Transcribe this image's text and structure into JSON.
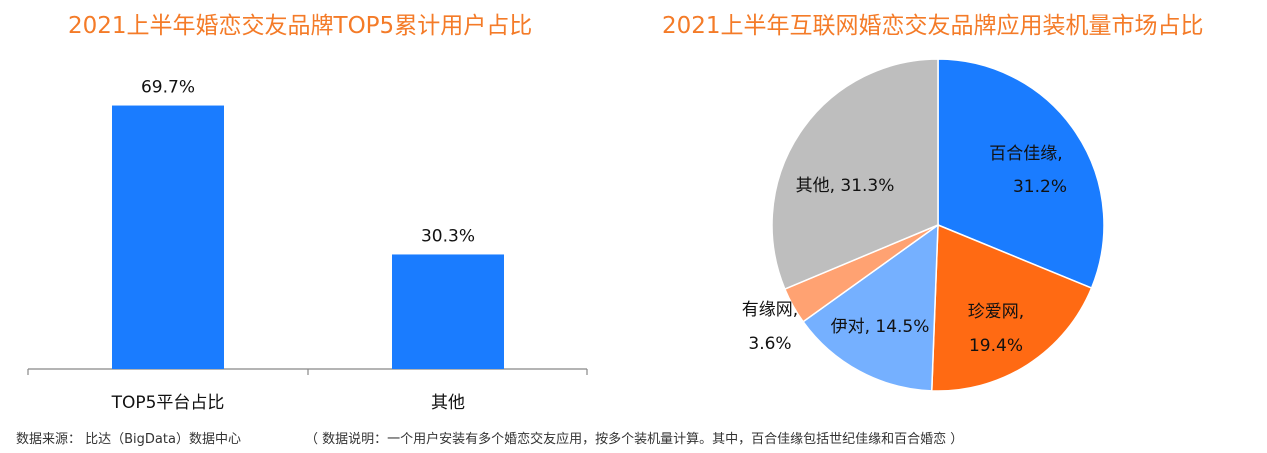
{
  "titles": {
    "left": "2021上半年婚恋交友品牌TOP5累计用户占比",
    "right": "2021上半年互联网婚恋交友品牌应用装机量市场占比"
  },
  "colors": {
    "title": "#f47b28",
    "bar": "#1a7cff"
  },
  "footer": {
    "source": "数据来源： 比达（BigData）数据中心",
    "note": "（ 数据说明：一个用户安装有多个婚恋交友应用，按多个装机量计算。其中，百合佳缘包括世纪佳缘和百合婚恋 ）"
  },
  "chart_data": [
    {
      "type": "bar",
      "title": "2021上半年婚恋交友品牌TOP5累计用户占比",
      "categories": [
        "TOP5平台占比",
        "其他"
      ],
      "values": [
        69.7,
        30.3
      ],
      "value_labels": [
        "69.7%",
        "30.3%"
      ],
      "ylim": [
        0,
        100
      ],
      "grid": false,
      "color": "#1a7cff"
    },
    {
      "type": "pie",
      "title": "2021上半年互联网婚恋交友品牌应用装机量市场占比",
      "slices": [
        {
          "label": "百合佳缘,",
          "value": 31.2,
          "value_label": "31.2%",
          "color": "#1a7cff"
        },
        {
          "label": "珍爱网,",
          "value": 19.4,
          "value_label": "19.4%",
          "color": "#ff6a13"
        },
        {
          "label": "伊对,",
          "value": 14.5,
          "value_label": "14.5%",
          "color": "#75b0ff"
        },
        {
          "label": "有缘网,",
          "value": 3.6,
          "value_label": "3.6%",
          "color": "#ffa272"
        },
        {
          "label": "其他,",
          "value": 31.3,
          "value_label": "31.3%",
          "color": "#bebebe"
        }
      ]
    }
  ]
}
